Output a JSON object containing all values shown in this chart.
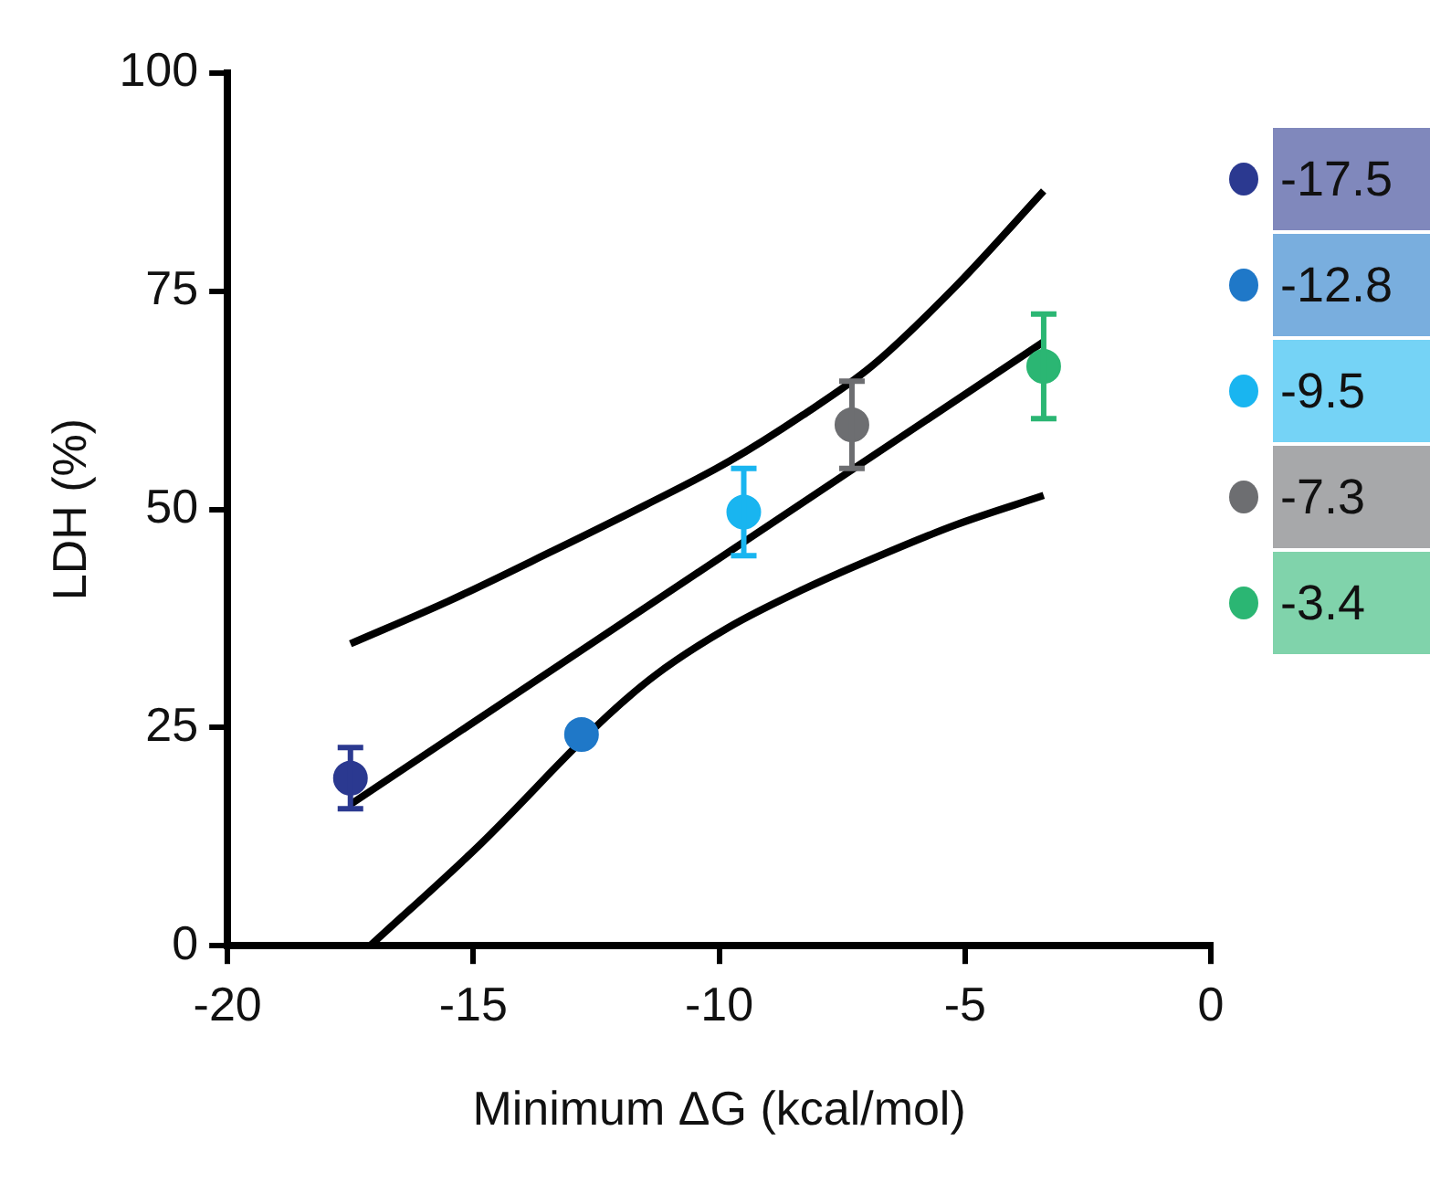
{
  "chart_data": {
    "type": "scatter",
    "xlabel": "Minimum ΔG (kcal/mol)",
    "ylabel": "LDH (%)",
    "xlim": [
      -20,
      0
    ],
    "xticks": [
      -20,
      -15,
      -10,
      -5,
      0
    ],
    "ylim": [
      0,
      100
    ],
    "yticks": [
      0,
      25,
      50,
      75,
      100
    ],
    "grid": false,
    "legend": "top right",
    "marker": "circle",
    "series": [
      {
        "name": "-17.5",
        "color": "#2b3990",
        "x": [
          -17.5
        ],
        "values": [
          19.2
        ],
        "errors": [
          3.5
        ]
      },
      {
        "name": "-12.8",
        "color": "#1f78c8",
        "x": [
          -12.8
        ],
        "values": [
          24.2
        ],
        "errors": [
          null
        ]
      },
      {
        "name": "-9.5",
        "color": "#19b5f0",
        "x": [
          -9.5
        ],
        "values": [
          49.7
        ],
        "errors": [
          5
        ]
      },
      {
        "name": "-7.3",
        "color": "#6d6e71",
        "x": [
          -7.3
        ],
        "values": [
          59.7
        ],
        "errors": [
          5
        ]
      },
      {
        "name": "-3.4",
        "color": "#2bb673",
        "x": [
          -3.4
        ],
        "values": [
          66.4
        ],
        "errors": [
          6
        ]
      },
      {
        "type": "line",
        "color": "#000000",
        "marker": "none",
        "line_style": "solid",
        "x": [
          -17.5,
          -3.4
        ],
        "values": [
          16.2,
          69.2
        ]
      },
      {
        "type": "line",
        "color": "#000000",
        "marker": "none",
        "line_style": "solid",
        "x": [
          -17.5,
          -15.5,
          -13.4,
          -11.5,
          -9.8,
          -8.3,
          -6.9,
          -5.2,
          -3.4
        ],
        "values": [
          34.6,
          39.5,
          45.2,
          50.5,
          55.5,
          60.8,
          66.4,
          75.5,
          86.5
        ]
      },
      {
        "type": "line",
        "color": "#000000",
        "marker": "none",
        "line_style": "solid",
        "x": [
          -17.1,
          -14.9,
          -12.3,
          -11.3,
          -9.8,
          -8.3,
          -6.9,
          -5.2,
          -3.4
        ],
        "values": [
          0,
          11.4,
          26.2,
          31,
          36.5,
          40.8,
          44.3,
          48.2,
          51.6
        ]
      }
    ]
  }
}
